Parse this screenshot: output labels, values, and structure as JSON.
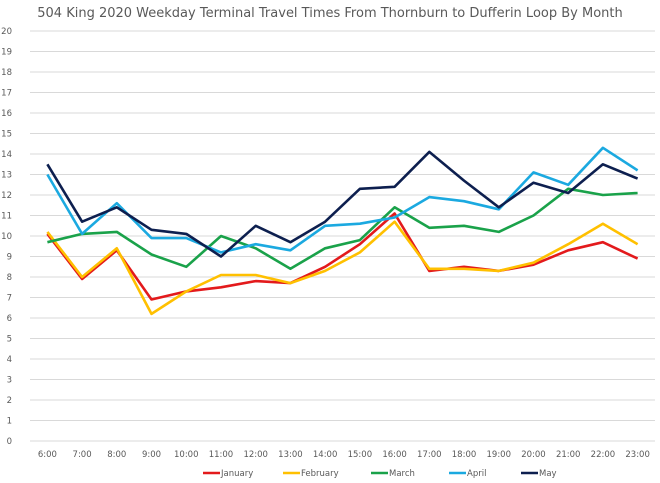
{
  "chart_data": {
    "type": "line",
    "title": "504 King 2020 Weekday Terminal Travel Times From Thornburn to Dufferin Loop By Month",
    "xlabel": "",
    "ylabel": "",
    "ylim": [
      0,
      20
    ],
    "yticks": [
      "0",
      "1",
      "2",
      "3",
      "4",
      "5",
      "6",
      "7",
      "8",
      "9",
      "10",
      "11",
      "12",
      "13",
      "14",
      "15",
      "16",
      "17",
      "18",
      "19",
      "20"
    ],
    "grid": true,
    "legend_position": "bottom",
    "categories": [
      "6:00",
      "7:00",
      "8:00",
      "9:00",
      "10:00",
      "11:00",
      "12:00",
      "13:00",
      "14:00",
      "15:00",
      "16:00",
      "17:00",
      "18:00",
      "19:00",
      "20:00",
      "21:00",
      "22:00",
      "23:00"
    ],
    "series": [
      {
        "name": "January",
        "color": "#e31a1c",
        "values": [
          10.1,
          7.9,
          9.3,
          6.9,
          7.3,
          7.5,
          7.8,
          7.7,
          8.5,
          9.6,
          11.1,
          8.3,
          8.5,
          8.3,
          8.6,
          9.3,
          9.7,
          8.9
        ]
      },
      {
        "name": "February",
        "color": "#ffc000",
        "values": [
          10.2,
          8.0,
          9.4,
          6.2,
          7.3,
          8.1,
          8.1,
          7.7,
          8.3,
          9.2,
          10.7,
          8.4,
          8.4,
          8.3,
          8.7,
          9.6,
          10.6,
          9.6
        ]
      },
      {
        "name": "March",
        "color": "#1aa24a",
        "values": [
          9.7,
          10.1,
          10.2,
          9.1,
          8.5,
          10.0,
          9.4,
          8.4,
          9.4,
          9.8,
          11.4,
          10.4,
          10.5,
          10.2,
          11.0,
          12.3,
          12.0,
          12.1
        ]
      },
      {
        "name": "April",
        "color": "#1ba9e0",
        "values": [
          13.0,
          10.1,
          11.6,
          9.9,
          9.9,
          9.2,
          9.6,
          9.3,
          10.5,
          10.6,
          10.9,
          11.9,
          11.7,
          11.3,
          13.1,
          12.5,
          14.3,
          13.2
        ]
      },
      {
        "name": "May",
        "color": "#0d1f4f",
        "values": [
          13.5,
          10.7,
          11.4,
          10.3,
          10.1,
          9.0,
          10.5,
          9.7,
          10.7,
          12.3,
          12.4,
          14.1,
          12.7,
          11.4,
          12.6,
          12.1,
          13.5,
          12.8
        ]
      }
    ]
  }
}
